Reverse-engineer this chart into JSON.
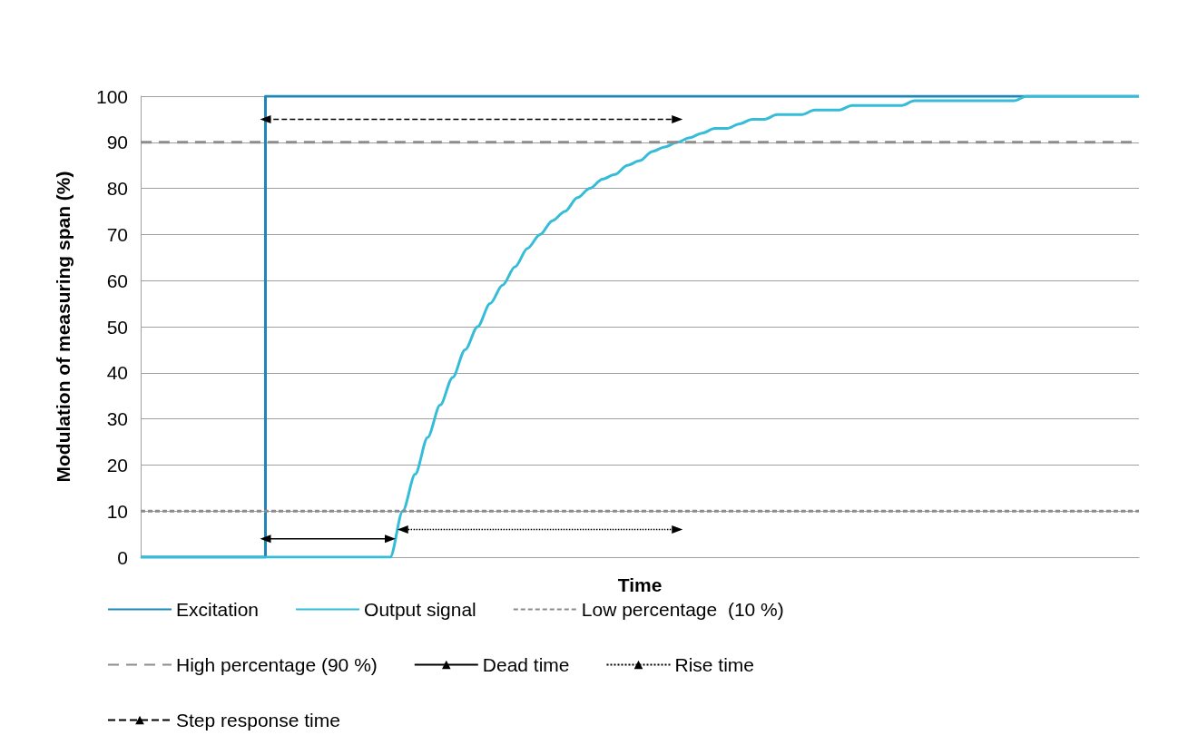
{
  "chart_data": {
    "type": "line",
    "xlabel": "Time",
    "ylabel": "Modulation of measuring span (%)",
    "categories": [
      null,
      null,
      null,
      null,
      null,
      null,
      null,
      null,
      null,
      null,
      null,
      null,
      null,
      null,
      null,
      null,
      null,
      null,
      null,
      null,
      null,
      null,
      null,
      null,
      null,
      null,
      null,
      null,
      null,
      null,
      null,
      null,
      null,
      null,
      null,
      null,
      null,
      null,
      null,
      null,
      null,
      null,
      null,
      null,
      null,
      null,
      null,
      null,
      null,
      null,
      null,
      null,
      null,
      null,
      null,
      null,
      null,
      null,
      null,
      null,
      null,
      null,
      null,
      null,
      null,
      null,
      null,
      null,
      null,
      null,
      null,
      null,
      null,
      null,
      null,
      null,
      null,
      null,
      null,
      null,
      null
    ],
    "ylim": [
      0,
      100
    ],
    "yticks": [
      0,
      10,
      20,
      30,
      40,
      50,
      60,
      70,
      80,
      90,
      100
    ],
    "grid": "y",
    "legend": "bottom",
    "marker": "none",
    "series": [
      {
        "name": "Excitation",
        "type": "step",
        "color": "#1f86b8",
        "line_style": "solid",
        "values": [
          0,
          0,
          0,
          0,
          0,
          0,
          0,
          0,
          0,
          0,
          100,
          100,
          100,
          100,
          100,
          100,
          100,
          100,
          100,
          100,
          100,
          100,
          100,
          100,
          100,
          100,
          100,
          100,
          100,
          100,
          100,
          100,
          100,
          100,
          100,
          100,
          100,
          100,
          100,
          100,
          100,
          100,
          100,
          100,
          100,
          100,
          100,
          100,
          100,
          100,
          100,
          100,
          100,
          100,
          100,
          100,
          100,
          100,
          100,
          100,
          100,
          100,
          100,
          100,
          100,
          100,
          100,
          100,
          100,
          100,
          100,
          100,
          100,
          100,
          100,
          100,
          100,
          100,
          100,
          100,
          100
        ]
      },
      {
        "name": "Output signal",
        "type": "line",
        "color": "#35bcd8",
        "line_style": "solid",
        "values": [
          0,
          0,
          0,
          0,
          0,
          0,
          0,
          0,
          0,
          0,
          0,
          0,
          0,
          0,
          0,
          0,
          0,
          0,
          0,
          0,
          0,
          10,
          18,
          26,
          33,
          39,
          45,
          50,
          55,
          59,
          63,
          67,
          70,
          73,
          75,
          78,
          80,
          82,
          83,
          85,
          86,
          88,
          89,
          90,
          91,
          92,
          93,
          93,
          94,
          95,
          95,
          96,
          96,
          96,
          97,
          97,
          97,
          98,
          98,
          98,
          98,
          98,
          99,
          99,
          99,
          99,
          99,
          99,
          99,
          99,
          99,
          100,
          100,
          100,
          100,
          100,
          100,
          100,
          100,
          100,
          100
        ]
      },
      {
        "name": "Low percentage  (10 %)",
        "type": "line",
        "color": "#8c8c8c",
        "line_style": "dotted",
        "values": [
          10,
          10,
          10,
          10,
          10,
          10,
          10,
          10,
          10,
          10,
          10,
          10,
          10,
          10,
          10,
          10,
          10,
          10,
          10,
          10,
          10,
          10,
          10,
          10,
          10,
          10,
          10,
          10,
          10,
          10,
          10,
          10,
          10,
          10,
          10,
          10,
          10,
          10,
          10,
          10,
          10,
          10,
          10,
          10,
          10,
          10,
          10,
          10,
          10,
          10,
          10,
          10,
          10,
          10,
          10,
          10,
          10,
          10,
          10,
          10,
          10,
          10,
          10,
          10,
          10,
          10,
          10,
          10,
          10,
          10,
          10,
          10,
          10,
          10,
          10,
          10,
          10,
          10,
          10,
          10,
          10
        ]
      },
      {
        "name": "High percentage (90 %)",
        "type": "line",
        "color": "#8c8c8c",
        "line_style": "dashed",
        "values": [
          90,
          90,
          90,
          90,
          90,
          90,
          90,
          90,
          90,
          90,
          90,
          90,
          90,
          90,
          90,
          90,
          90,
          90,
          90,
          90,
          90,
          90,
          90,
          90,
          90,
          90,
          90,
          90,
          90,
          90,
          90,
          90,
          90,
          90,
          90,
          90,
          90,
          90,
          90,
          90,
          90,
          90,
          90,
          90,
          90,
          90,
          90,
          90,
          90,
          90,
          90,
          90,
          90,
          90,
          90,
          90,
          90,
          90,
          90,
          90,
          90,
          90,
          90,
          90,
          90,
          90,
          90,
          90,
          90,
          90,
          90,
          90,
          90,
          90,
          90,
          90,
          90,
          90,
          90,
          90,
          90
        ]
      },
      {
        "name": "Dead time",
        "type": "line",
        "color": "#000000",
        "line_style": "solid",
        "marker": "triangle",
        "values": [
          null,
          null,
          null,
          null,
          null,
          null,
          null,
          null,
          null,
          null,
          4,
          null,
          null,
          null,
          null,
          null,
          null,
          null,
          null,
          null,
          4,
          null,
          null,
          null,
          null,
          null,
          null,
          null,
          null,
          null,
          null,
          null,
          null,
          null,
          null,
          null,
          null,
          null,
          null,
          null,
          null,
          null,
          null,
          null,
          null,
          null,
          null,
          null,
          null,
          null,
          null,
          null,
          null,
          null,
          null,
          null,
          null,
          null,
          null,
          null,
          null,
          null,
          null,
          null,
          null,
          null,
          null,
          null,
          null,
          null,
          null,
          null,
          null,
          null,
          null,
          null,
          null,
          null,
          null,
          null,
          null
        ]
      },
      {
        "name": "Rise time",
        "type": "line",
        "color": "#000000",
        "line_style": "dotted",
        "marker": "triangle",
        "values": [
          null,
          null,
          null,
          null,
          null,
          null,
          null,
          null,
          null,
          null,
          null,
          null,
          null,
          null,
          null,
          null,
          null,
          null,
          null,
          null,
          null,
          6,
          null,
          null,
          null,
          null,
          null,
          null,
          null,
          null,
          null,
          null,
          null,
          null,
          null,
          null,
          null,
          null,
          null,
          null,
          null,
          null,
          null,
          6,
          null,
          null,
          null,
          null,
          null,
          null,
          null,
          null,
          null,
          null,
          null,
          null,
          null,
          null,
          null,
          null,
          null,
          null,
          null,
          null,
          null,
          null,
          null,
          null,
          null,
          null,
          null,
          null,
          null,
          null,
          null,
          null,
          null,
          null,
          null,
          null,
          null
        ]
      },
      {
        "name": "Step response time",
        "type": "line",
        "color": "#000000",
        "line_style": "dashed",
        "marker": "triangle",
        "values": [
          null,
          null,
          null,
          null,
          null,
          null,
          null,
          null,
          null,
          null,
          95,
          null,
          null,
          null,
          null,
          null,
          null,
          null,
          null,
          null,
          null,
          null,
          null,
          null,
          null,
          null,
          null,
          null,
          null,
          null,
          null,
          null,
          null,
          null,
          null,
          null,
          null,
          null,
          null,
          null,
          null,
          null,
          null,
          95,
          null,
          null,
          null,
          null,
          null,
          null,
          null,
          null,
          null,
          null,
          null,
          null,
          null,
          null,
          null,
          null,
          null,
          null,
          null,
          null,
          null,
          null,
          null,
          null,
          null,
          null,
          null,
          null,
          null,
          null,
          null,
          null,
          null,
          null,
          null,
          null,
          null
        ]
      }
    ]
  }
}
